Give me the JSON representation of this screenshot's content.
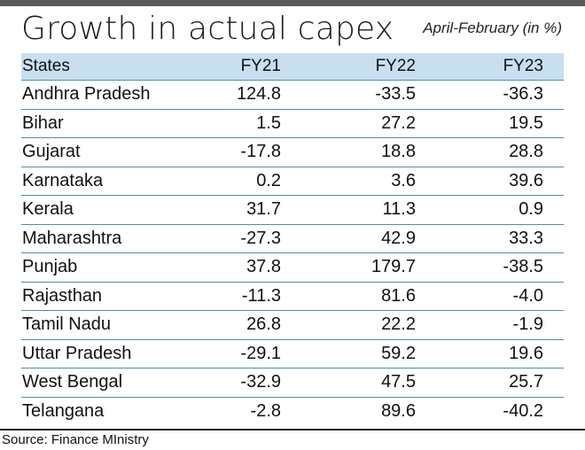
{
  "title": "Growth in actual capex",
  "subtitle": "April-February (in %)",
  "table": {
    "headers": [
      "States",
      "FY21",
      "FY22",
      "FY23"
    ],
    "rows": [
      {
        "state": "Andhra Pradesh",
        "fy21": "124.8",
        "fy22": "-33.5",
        "fy23": "-36.3"
      },
      {
        "state": "Bihar",
        "fy21": "1.5",
        "fy22": "27.2",
        "fy23": "19.5"
      },
      {
        "state": "Gujarat",
        "fy21": "-17.8",
        "fy22": "18.8",
        "fy23": "28.8"
      },
      {
        "state": "Karnataka",
        "fy21": "0.2",
        "fy22": "3.6",
        "fy23": "39.6"
      },
      {
        "state": "Kerala",
        "fy21": "31.7",
        "fy22": "11.3",
        "fy23": "0.9"
      },
      {
        "state": "Maharashtra",
        "fy21": "-27.3",
        "fy22": "42.9",
        "fy23": "33.3"
      },
      {
        "state": "Punjab",
        "fy21": "37.8",
        "fy22": "179.7",
        "fy23": "-38.5"
      },
      {
        "state": "Rajasthan",
        "fy21": "-11.3",
        "fy22": "81.6",
        "fy23": "-4.0"
      },
      {
        "state": "Tamil Nadu",
        "fy21": "26.8",
        "fy22": "22.2",
        "fy23": "-1.9"
      },
      {
        "state": "Uttar Pradesh",
        "fy21": "-29.1",
        "fy22": "59.2",
        "fy23": "19.6"
      },
      {
        "state": "West Bengal",
        "fy21": "-32.9",
        "fy22": "47.5",
        "fy23": "25.7"
      },
      {
        "state": "Telangana",
        "fy21": "-2.8",
        "fy22": "89.6",
        "fy23": "-40.2"
      }
    ]
  },
  "source": "Source: Finance MInistry",
  "colors": {
    "header_background": "#c8dff0",
    "row_divider": "#4f8fa8",
    "top_bar": "#5a5a5a"
  }
}
